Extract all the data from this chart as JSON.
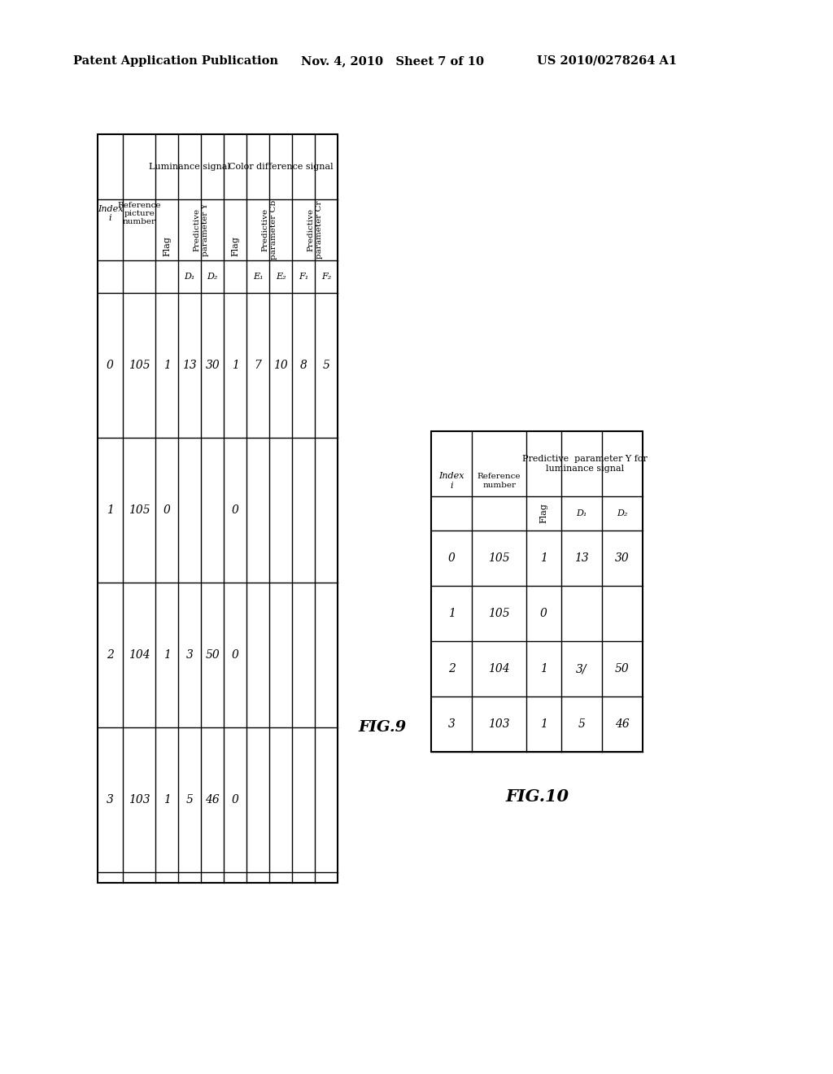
{
  "header_left": "Patent Application Publication",
  "header_mid": "Nov. 4, 2010   Sheet 7 of 10",
  "header_right": "US 2010/0278264 A1",
  "fig9_label": "FIG.9",
  "fig10_label": "FIG.10",
  "fig9": {
    "data": [
      [
        "0",
        "105",
        "1",
        "13",
        "30",
        "1",
        "7",
        "10",
        "8",
        "5"
      ],
      [
        "1",
        "105",
        "0",
        "",
        "",
        "0",
        "",
        "",
        "",
        ""
      ],
      [
        "2",
        "104",
        "1",
        "3",
        "50",
        "0",
        "",
        "",
        "",
        ""
      ],
      [
        "3",
        "103",
        "1",
        "5",
        "46",
        "0",
        "",
        "",
        "",
        ""
      ]
    ]
  },
  "fig10": {
    "data": [
      [
        "0",
        "105",
        "1",
        "13",
        "30"
      ],
      [
        "1",
        "105",
        "0",
        "",
        ""
      ],
      [
        "2",
        "104",
        "1",
        "3/",
        "50"
      ],
      [
        "3",
        "103",
        "1",
        "5",
        "46"
      ]
    ]
  }
}
